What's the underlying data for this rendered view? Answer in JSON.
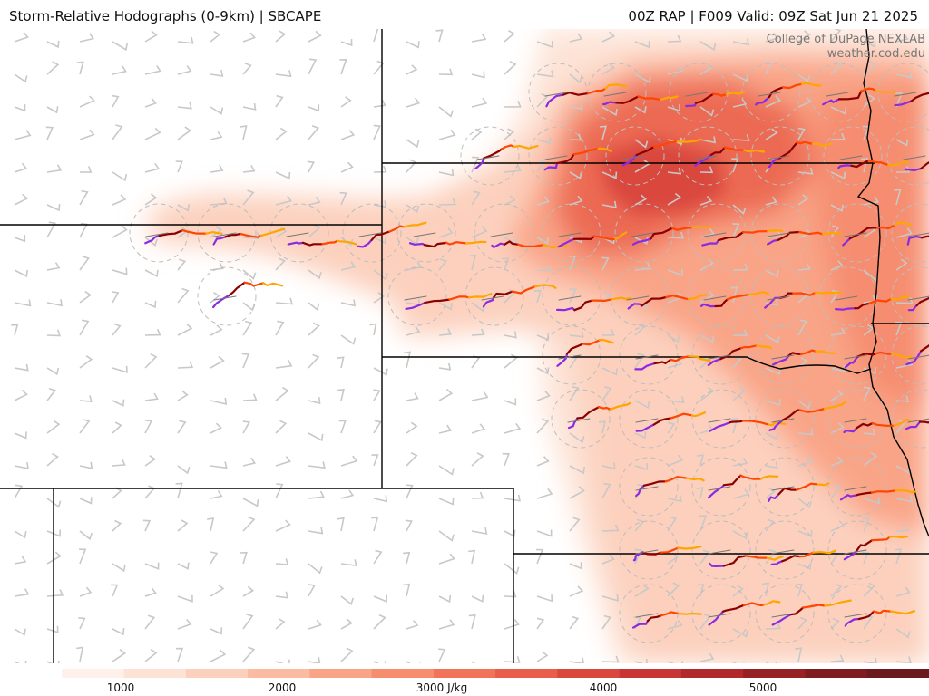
{
  "header": {
    "title_left": "Storm-Relative Hodographs (0-9km) | SBCAPE",
    "title_right": "00Z RAP | F009 Valid: 09Z Sat Jun 21 2025"
  },
  "watermark": {
    "line1": "College of DuPage NEXLAB",
    "line2": "weather.cod.edu"
  },
  "colorbar": {
    "unit": "J/kg",
    "ticks": [
      {
        "text": "1000"
      },
      {
        "text": "2000"
      },
      {
        "text": "3000 J/kg"
      },
      {
        "text": "4000"
      },
      {
        "text": "5000"
      }
    ],
    "colors": [
      "#ffffff",
      "#fff1ea",
      "#fde3d6",
      "#fcd0bd",
      "#fbbba3",
      "#f9a487",
      "#f68d6f",
      "#f1745a",
      "#e85e4a",
      "#d9473d",
      "#c73535",
      "#b02a2c",
      "#962226",
      "#7e1c22",
      "#6b1a1f"
    ]
  },
  "legend": {
    "hodograph_colors": {
      "0-1km": "#8a2be2",
      "1-3km": "#8b0000",
      "3-6km": "#ff4500",
      "6-9km": "#ffa500"
    },
    "barb_color": "#c8c8c8",
    "border_color": "#000000"
  }
}
